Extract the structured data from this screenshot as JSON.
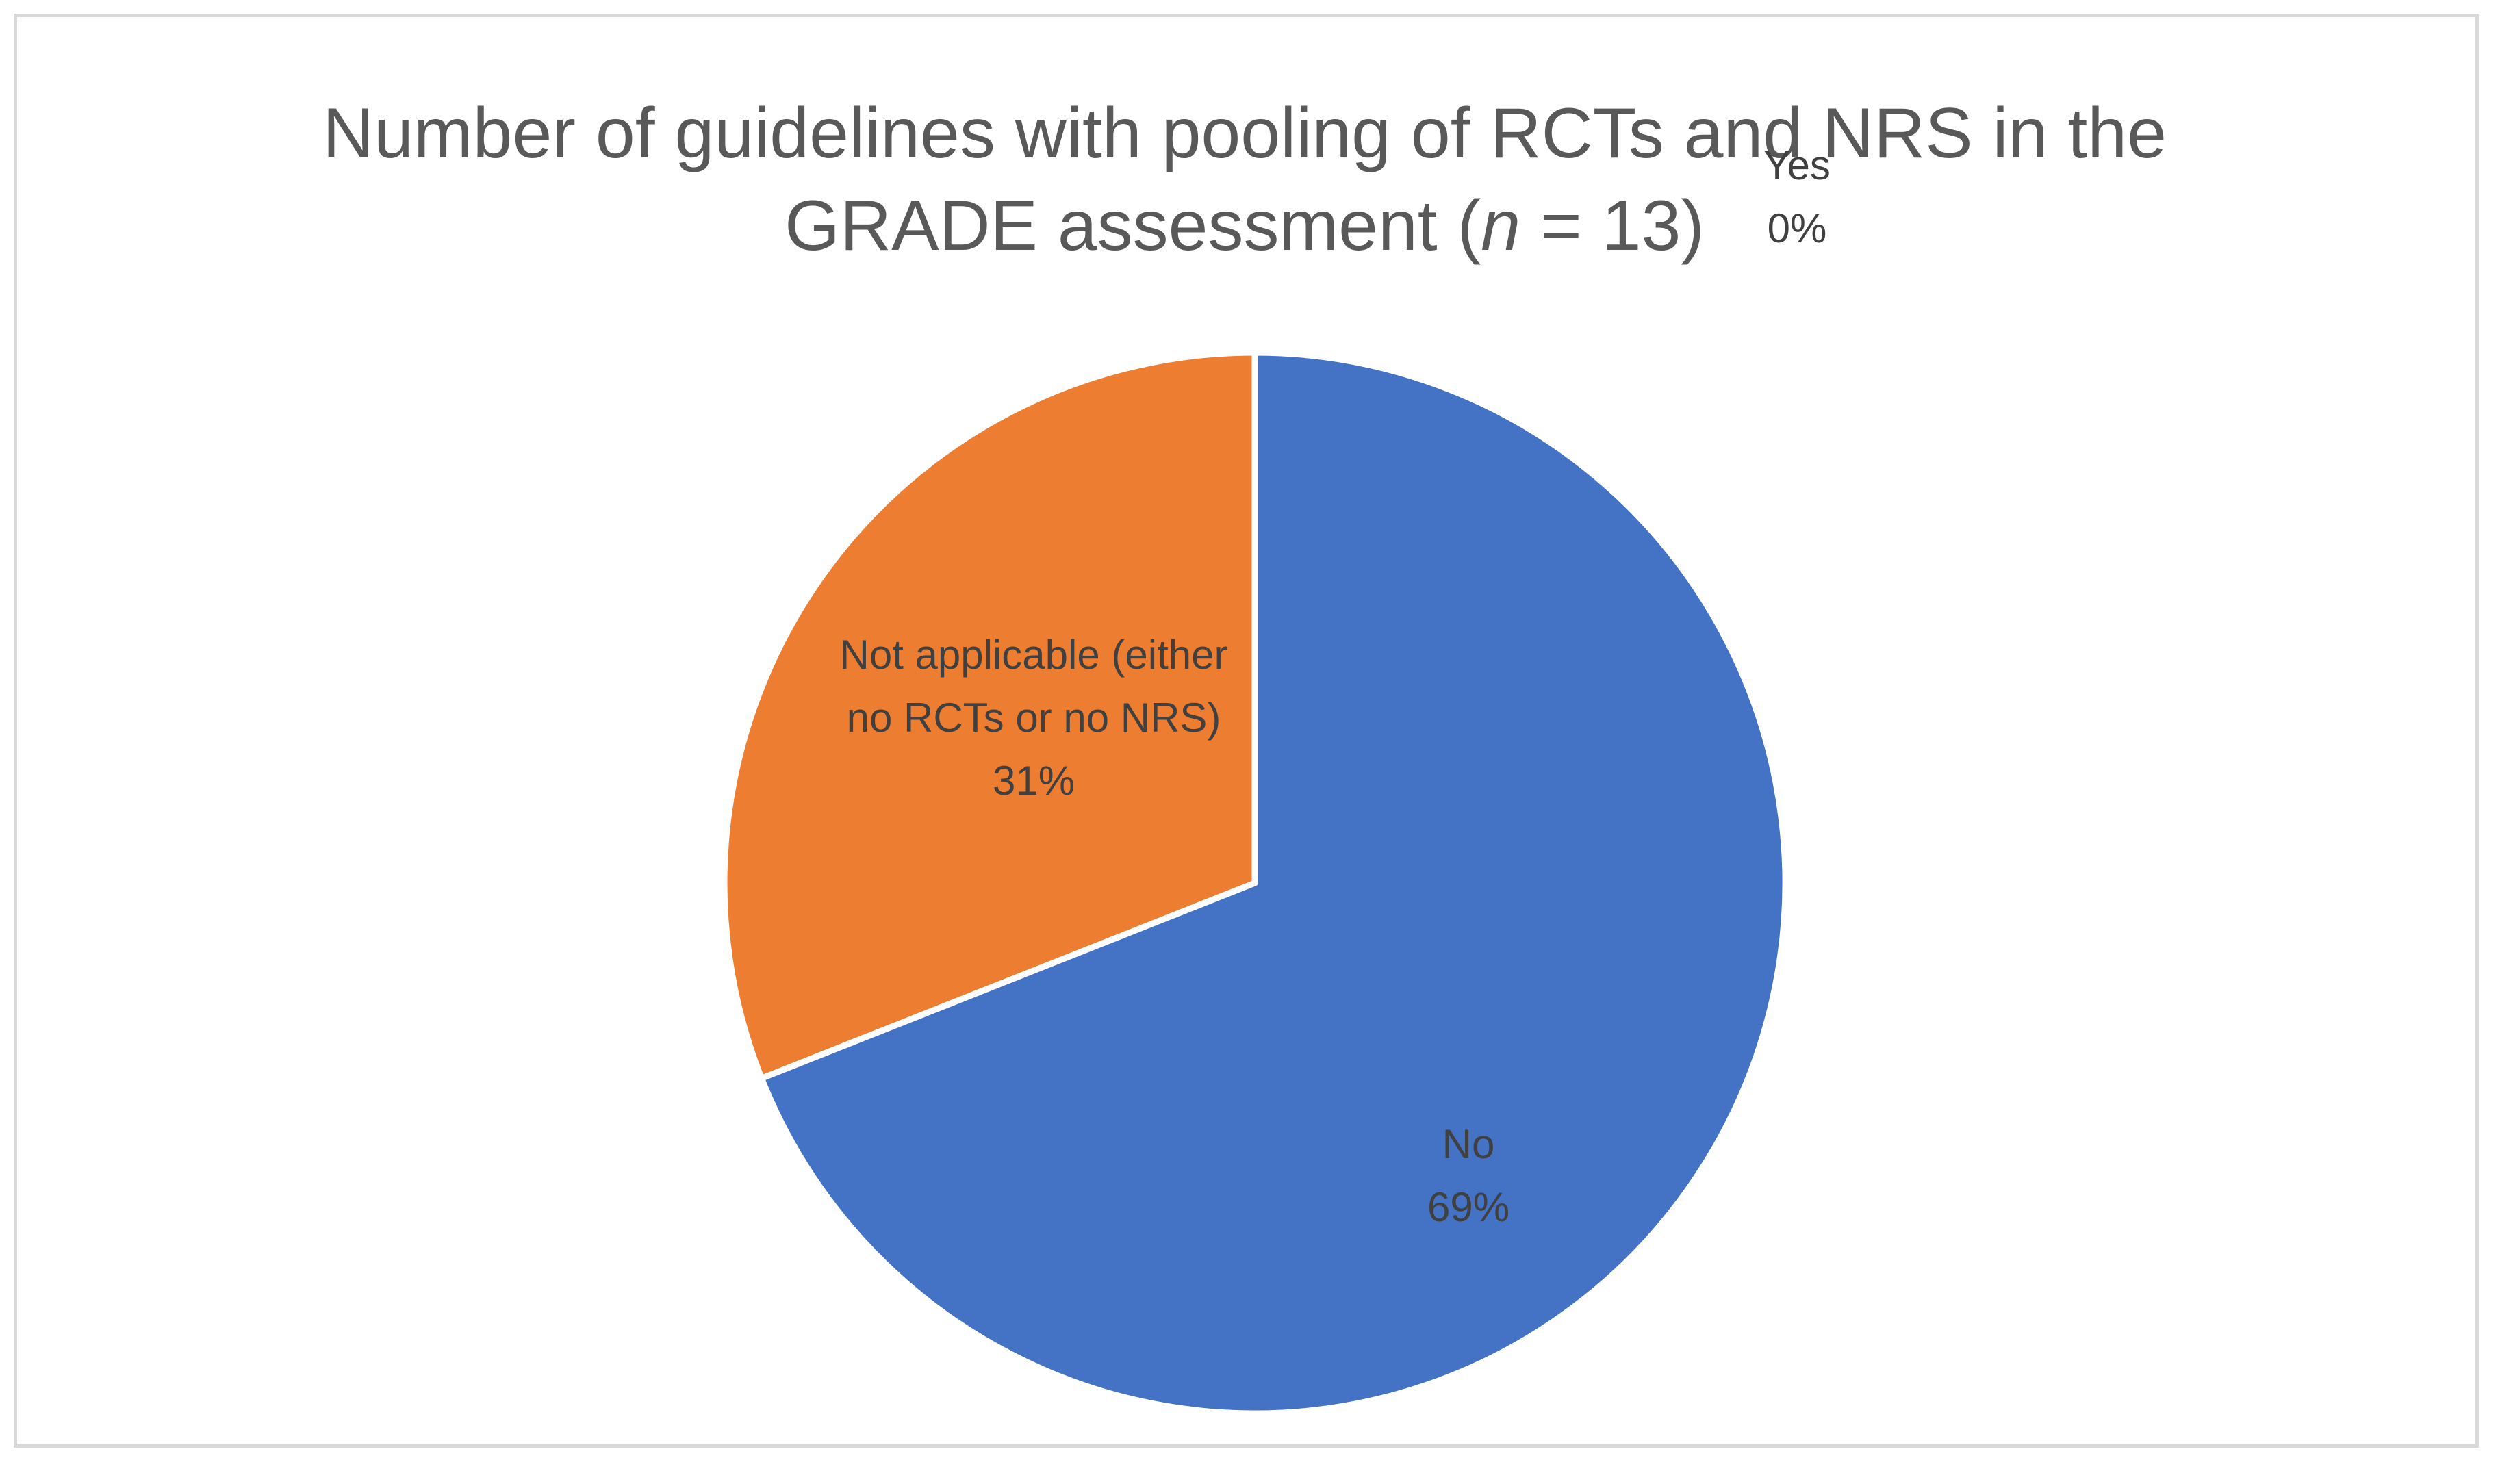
{
  "chart_data": {
    "type": "pie",
    "title_line1": "Number of guidelines with pooling of RCTs and NRS in the",
    "title_line2_pre": "GRADE assessment (",
    "title_line2_italic": "n",
    "title_line2_post": " = 13)",
    "slices": [
      {
        "name": "Yes",
        "percent_label": "0%",
        "value": 0,
        "color": "#4472c4",
        "label_lines": [
          "Yes"
        ]
      },
      {
        "name": "No",
        "percent_label": "69%",
        "value": 69,
        "color": "#4472c4",
        "label_lines": [
          "No"
        ]
      },
      {
        "name": "Not applicable (either no RCTs or no NRS)",
        "percent_label": "31%",
        "value": 31,
        "color": "#ed7d31",
        "label_lines": [
          "Not applicable (either",
          "no RCTs or no NRS)"
        ]
      }
    ],
    "start_angle_deg": 0,
    "legend": "none",
    "slice_border_color": "#ffffff"
  }
}
